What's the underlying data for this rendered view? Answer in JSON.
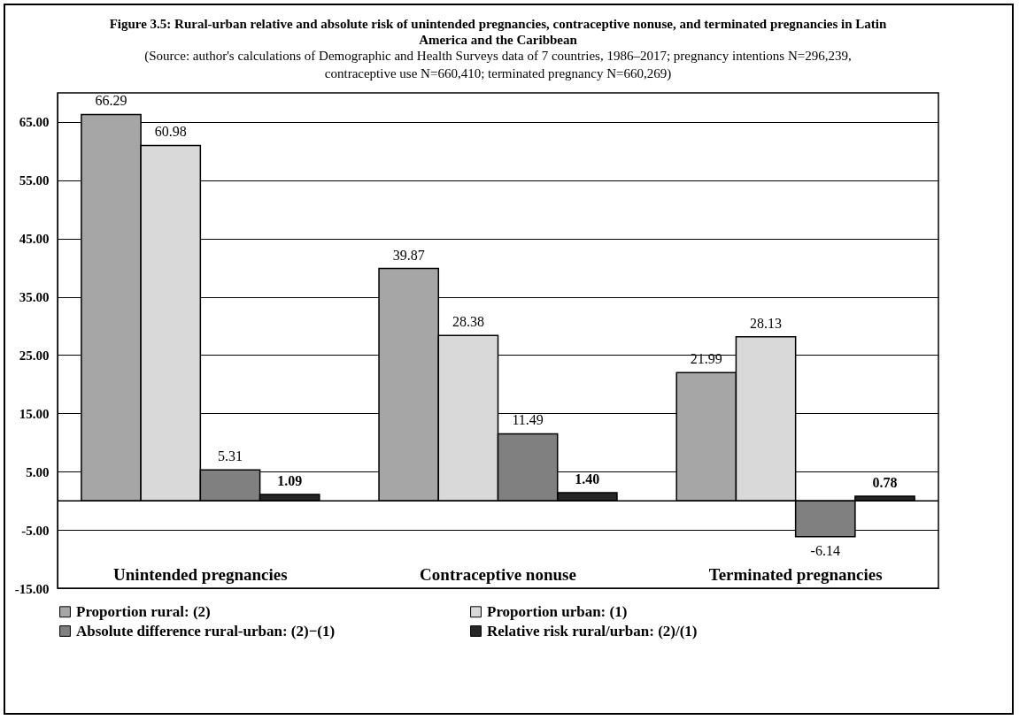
{
  "chart_data": {
    "type": "bar",
    "title": "Figure 3.5: Rural-urban relative and absolute risk of unintended pregnancies, contraceptive nonuse, and terminated pregnancies in Latin America and the Caribbean",
    "subtitle": "(Source: author's calculations of Demographic and Health Surveys data of 7 countries, 1986–2017; pregnancy intentions N=296,239, contraceptive use N=660,410; terminated pregnancy N=660,269)",
    "categories": [
      "Unintended pregnancies",
      "Contraceptive nonuse",
      "Terminated pregnancies"
    ],
    "series": [
      {
        "name": "Proportion rural: (2)",
        "color": "#a6a6a6",
        "values": [
          66.29,
          39.87,
          21.99
        ],
        "value_labels": [
          "66.29",
          "39.87",
          "21.99"
        ]
      },
      {
        "name": "Proportion urban: (1)",
        "color": "#d9d9d9",
        "values": [
          60.98,
          28.38,
          28.13
        ],
        "value_labels": [
          "60.98",
          "28.38",
          "28.13"
        ]
      },
      {
        "name": "Absolute difference rural-urban: (2)−(1)",
        "color": "#808080",
        "values": [
          5.31,
          11.49,
          -6.14
        ],
        "value_labels": [
          "5.31",
          "11.49",
          "-6.14"
        ]
      },
      {
        "name": "Relative risk rural/urban: (2)/(1)",
        "color": "#262626",
        "values": [
          1.09,
          1.4,
          0.78
        ],
        "value_labels": [
          "1.09",
          "1.40",
          "0.78"
        ]
      }
    ],
    "ylim": [
      -15,
      70
    ],
    "yticks": [
      {
        "value": -15,
        "label": "-15.00"
      },
      {
        "value": -5,
        "label": "-5.00"
      },
      {
        "value": 5,
        "label": "5.00"
      },
      {
        "value": 15,
        "label": "15.00"
      },
      {
        "value": 25,
        "label": "25.00"
      },
      {
        "value": 35,
        "label": "35.00"
      },
      {
        "value": 45,
        "label": "45.00"
      },
      {
        "value": 55,
        "label": "55.00"
      },
      {
        "value": 65,
        "label": "65.00"
      }
    ],
    "ref_lines": [
      {
        "axis": "y",
        "value": 0,
        "color": "#000000"
      }
    ],
    "grid": "y",
    "legend": "bottom"
  }
}
